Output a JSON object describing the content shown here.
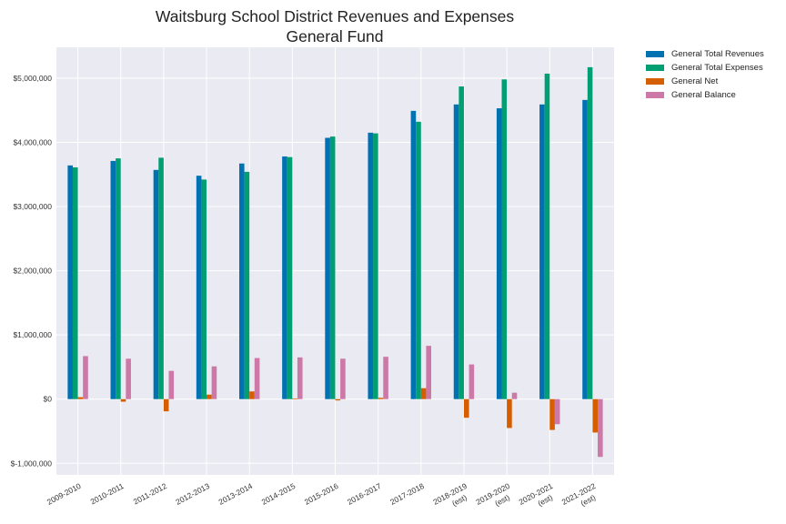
{
  "chart_data": {
    "type": "bar",
    "title": [
      "Waitsburg School District Revenues and Expenses",
      "General Fund"
    ],
    "xlabel": "",
    "ylabel": "",
    "categories": [
      [
        "2009-2010"
      ],
      [
        "2010-2011"
      ],
      [
        "2011-2012"
      ],
      [
        "2012-2013"
      ],
      [
        "2013-2014"
      ],
      [
        "2014-2015"
      ],
      [
        "2015-2016"
      ],
      [
        "2016-2017"
      ],
      [
        "2017-2018"
      ],
      [
        "2018-2019",
        "(est)"
      ],
      [
        "2019-2020",
        "(est)"
      ],
      [
        "2020-2021",
        "(est)"
      ],
      [
        "2021-2022",
        "(est)"
      ]
    ],
    "ylim": [
      -1180000,
      5480000
    ],
    "yticks": [
      -1000000,
      0,
      1000000,
      2000000,
      3000000,
      4000000,
      5000000
    ],
    "ytick_labels": [
      "$-1,000,000",
      "$0",
      "$1,000,000",
      "$2,000,000",
      "$3,000,000",
      "$4,000,000",
      "$5,000,000"
    ],
    "grid": true,
    "legend_position": "outside-top-right",
    "series": [
      {
        "name": "General Total Revenues",
        "color": "#0072b2",
        "values": [
          3640000,
          3710000,
          3570000,
          3480000,
          3670000,
          3780000,
          4070000,
          4150000,
          4490000,
          4590000,
          4530000,
          4590000,
          4660000
        ]
      },
      {
        "name": "General Total Expenses",
        "color": "#009e73",
        "values": [
          3610000,
          3750000,
          3760000,
          3420000,
          3540000,
          3770000,
          4090000,
          4140000,
          4320000,
          4870000,
          4980000,
          5070000,
          5170000
        ]
      },
      {
        "name": "General Net",
        "color": "#d55e00",
        "values": [
          30000,
          -40000,
          -190000,
          70000,
          120000,
          10000,
          -20000,
          20000,
          170000,
          -290000,
          -450000,
          -480000,
          -520000
        ]
      },
      {
        "name": "General Balance",
        "color": "#cc79a7",
        "values": [
          670000,
          630000,
          440000,
          510000,
          640000,
          650000,
          630000,
          660000,
          830000,
          540000,
          100000,
          -390000,
          -900000
        ]
      }
    ]
  }
}
